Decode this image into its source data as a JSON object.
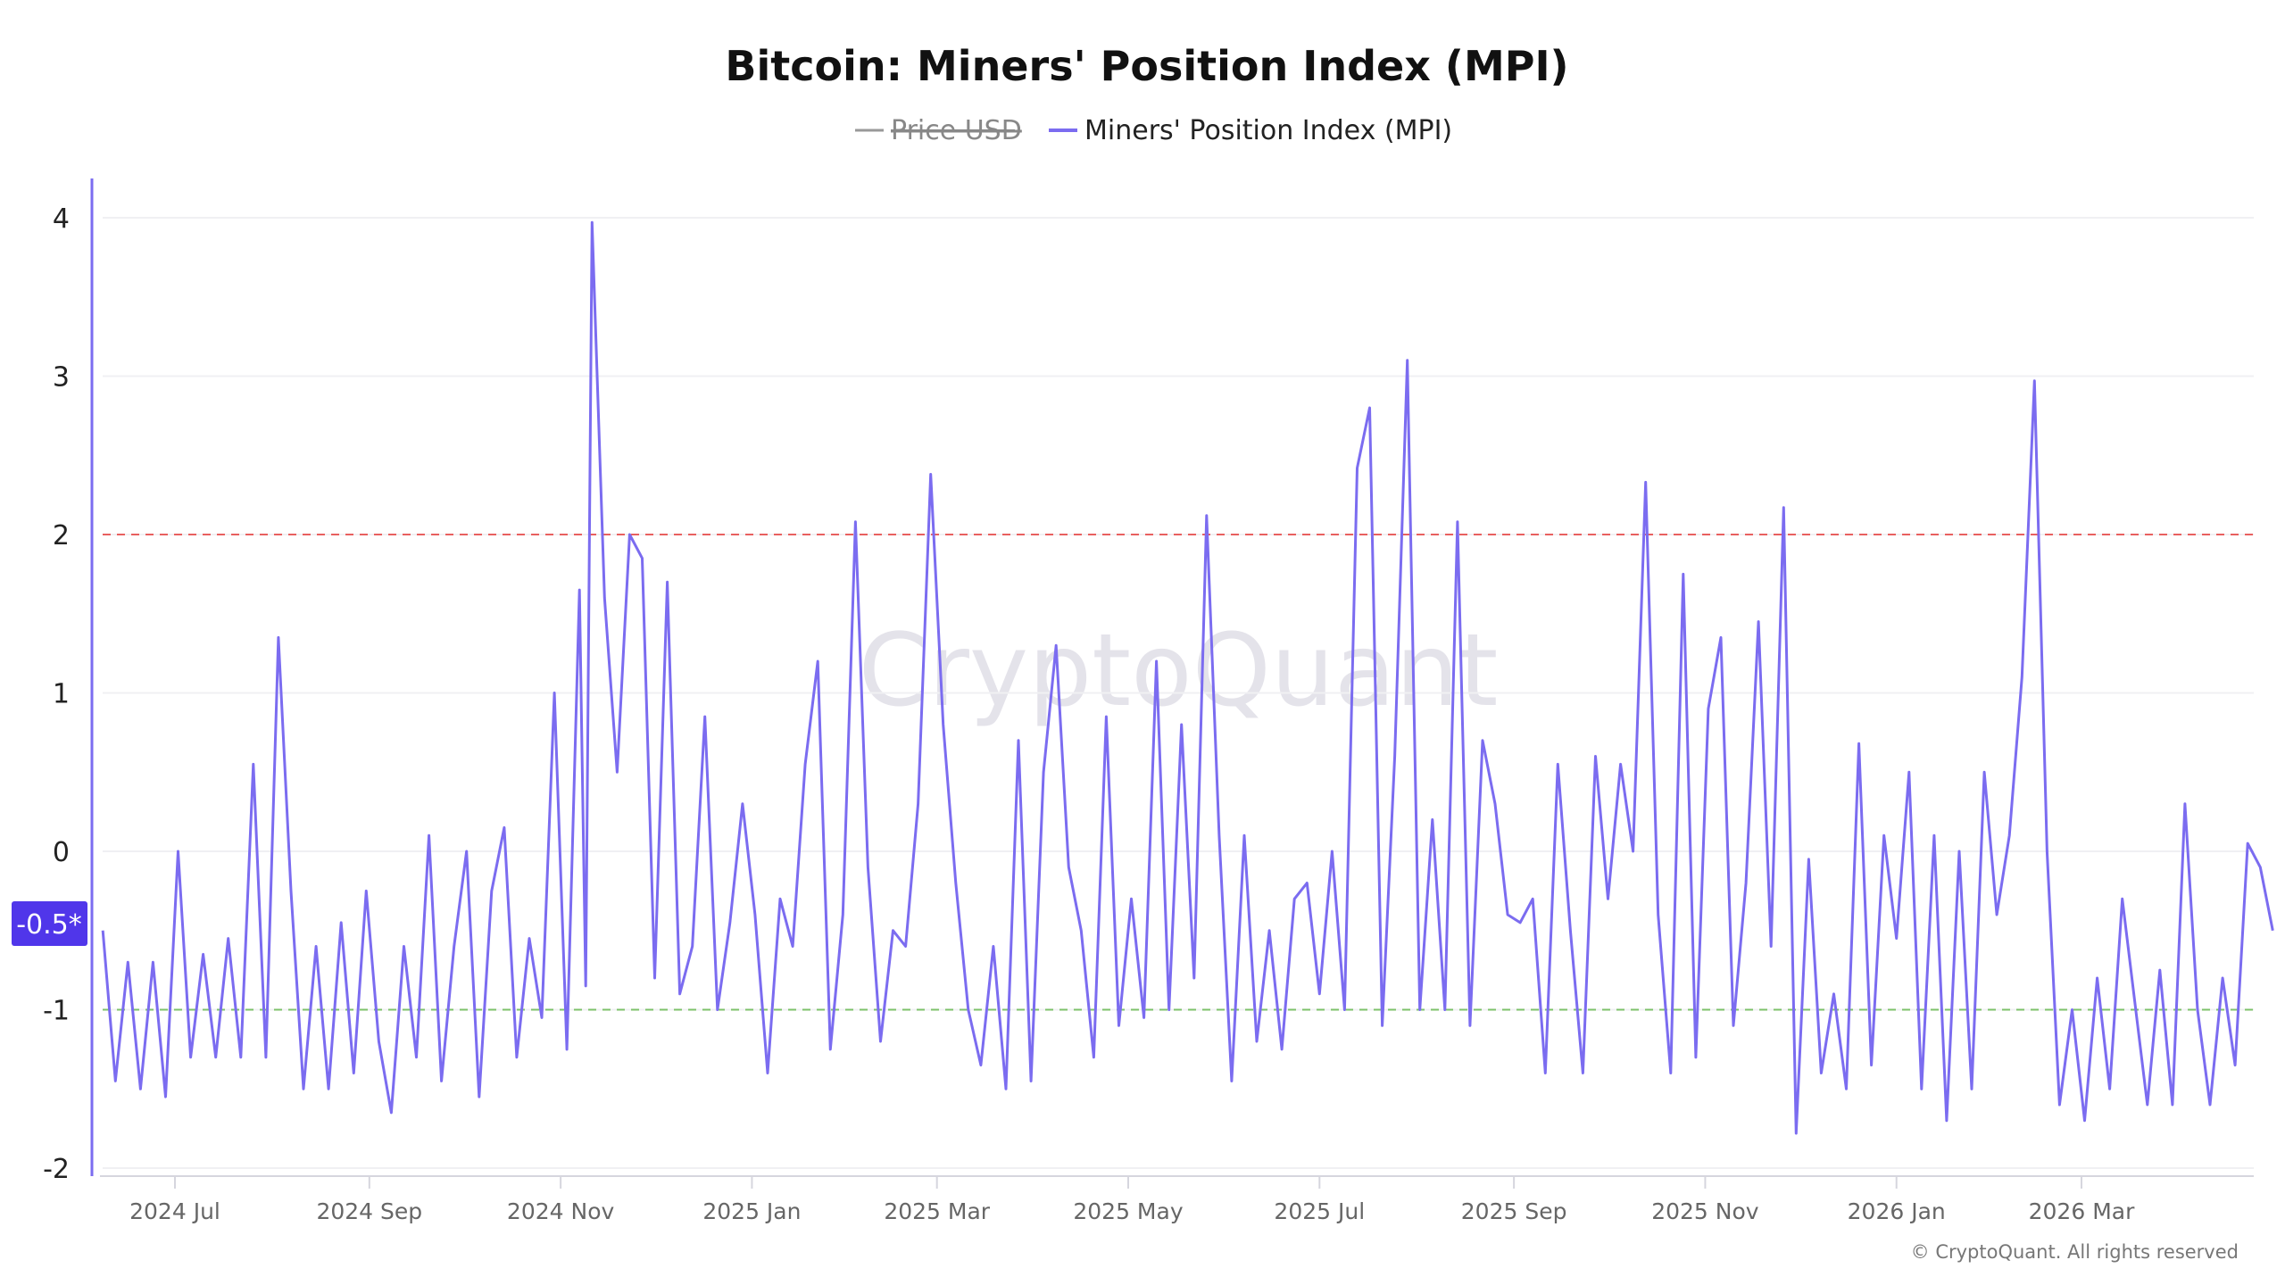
{
  "chart_data": {
    "type": "line",
    "title": "Bitcoin: Miners' Position Index (MPI)",
    "legend": [
      {
        "name": "Price USD",
        "color": "#999999",
        "hidden": true
      },
      {
        "name": "Miners' Position Index (MPI)",
        "color": "#7b6cf0",
        "hidden": false
      }
    ],
    "legend_placement": "top-center",
    "ylim": [
      -2,
      4.2
    ],
    "yticks": [
      "4",
      "3",
      "2",
      "1",
      "0",
      "-1",
      "-2"
    ],
    "ytick_values": [
      4,
      3,
      2,
      1,
      0,
      -1,
      -2
    ],
    "xticks": [
      "2024 Jul",
      "2024 Sep",
      "2024 Nov",
      "2025 Jan",
      "2025 Mar",
      "2025 May",
      "2025 Jul",
      "2025 Sep",
      "2025 Nov",
      "2026 Jan",
      "2026 Mar"
    ],
    "xlim": [
      "2024-06-06",
      "2026-05-02"
    ],
    "grid": true,
    "thresholds": [
      {
        "value": 2,
        "color": "#e8605f",
        "style": "dashed"
      },
      {
        "value": -1,
        "color": "#7cc26a",
        "style": "dashed"
      }
    ],
    "current_value_label": "-0.5*",
    "badge_color": "#5036ea",
    "watermark": "CryptoQuant",
    "copyright": "© CryptoQuant. All rights reserved",
    "series": [
      {
        "name": "Miners' Position Index (MPI)",
        "color": "#7b6cf0",
        "points": [
          [
            "2024-06-08",
            -0.5
          ],
          [
            "2024-06-12",
            -1.45
          ],
          [
            "2024-06-16",
            -0.7
          ],
          [
            "2024-06-20",
            -1.5
          ],
          [
            "2024-06-24",
            -0.7
          ],
          [
            "2024-06-28",
            -1.55
          ],
          [
            "2024-07-02",
            0.0
          ],
          [
            "2024-07-06",
            -1.3
          ],
          [
            "2024-07-10",
            -0.65
          ],
          [
            "2024-07-14",
            -1.3
          ],
          [
            "2024-07-18",
            -0.55
          ],
          [
            "2024-07-22",
            -1.3
          ],
          [
            "2024-07-26",
            0.55
          ],
          [
            "2024-07-30",
            -1.3
          ],
          [
            "2024-08-03",
            1.35
          ],
          [
            "2024-08-07",
            -0.25
          ],
          [
            "2024-08-11",
            -1.5
          ],
          [
            "2024-08-15",
            -0.6
          ],
          [
            "2024-08-19",
            -1.5
          ],
          [
            "2024-08-23",
            -0.45
          ],
          [
            "2024-08-27",
            -1.4
          ],
          [
            "2024-08-31",
            -0.25
          ],
          [
            "2024-09-04",
            -1.2
          ],
          [
            "2024-09-08",
            -1.65
          ],
          [
            "2024-09-12",
            -0.6
          ],
          [
            "2024-09-16",
            -1.3
          ],
          [
            "2024-09-20",
            0.1
          ],
          [
            "2024-09-24",
            -1.45
          ],
          [
            "2024-09-28",
            -0.6
          ],
          [
            "2024-10-02",
            0.0
          ],
          [
            "2024-10-06",
            -1.55
          ],
          [
            "2024-10-10",
            -0.25
          ],
          [
            "2024-10-14",
            0.15
          ],
          [
            "2024-10-18",
            -1.3
          ],
          [
            "2024-10-22",
            -0.55
          ],
          [
            "2024-10-26",
            -1.05
          ],
          [
            "2024-10-30",
            1.0
          ],
          [
            "2024-11-03",
            -1.25
          ],
          [
            "2024-11-07",
            1.65
          ],
          [
            "2024-11-09",
            -0.85
          ],
          [
            "2024-11-11",
            3.97
          ],
          [
            "2024-11-15",
            1.6
          ],
          [
            "2024-11-19",
            0.5
          ],
          [
            "2024-11-23",
            2.0
          ],
          [
            "2024-11-27",
            1.85
          ],
          [
            "2024-12-01",
            -0.8
          ],
          [
            "2024-12-05",
            1.7
          ],
          [
            "2024-12-09",
            -0.9
          ],
          [
            "2024-12-13",
            -0.6
          ],
          [
            "2024-12-17",
            0.85
          ],
          [
            "2024-12-21",
            -1.0
          ],
          [
            "2024-12-25",
            -0.45
          ],
          [
            "2024-12-29",
            0.3
          ],
          [
            "2025-01-02",
            -0.4
          ],
          [
            "2025-01-06",
            -1.4
          ],
          [
            "2025-01-10",
            -0.3
          ],
          [
            "2025-01-14",
            -0.6
          ],
          [
            "2025-01-18",
            0.55
          ],
          [
            "2025-01-22",
            1.2
          ],
          [
            "2025-01-26",
            -1.25
          ],
          [
            "2025-01-30",
            -0.4
          ],
          [
            "2025-02-03",
            2.08
          ],
          [
            "2025-02-07",
            -0.1
          ],
          [
            "2025-02-11",
            -1.2
          ],
          [
            "2025-02-15",
            -0.5
          ],
          [
            "2025-02-19",
            -0.6
          ],
          [
            "2025-02-23",
            0.3
          ],
          [
            "2025-02-27",
            2.38
          ],
          [
            "2025-03-03",
            0.8
          ],
          [
            "2025-03-07",
            -0.2
          ],
          [
            "2025-03-11",
            -1.0
          ],
          [
            "2025-03-15",
            -1.35
          ],
          [
            "2025-03-19",
            -0.6
          ],
          [
            "2025-03-23",
            -1.5
          ],
          [
            "2025-03-27",
            0.7
          ],
          [
            "2025-03-31",
            -1.45
          ],
          [
            "2025-04-04",
            0.5
          ],
          [
            "2025-04-08",
            1.3
          ],
          [
            "2025-04-12",
            -0.1
          ],
          [
            "2025-04-16",
            -0.5
          ],
          [
            "2025-04-20",
            -1.3
          ],
          [
            "2025-04-24",
            0.85
          ],
          [
            "2025-04-28",
            -1.1
          ],
          [
            "2025-05-02",
            -0.3
          ],
          [
            "2025-05-06",
            -1.05
          ],
          [
            "2025-05-10",
            1.2
          ],
          [
            "2025-05-14",
            -1.0
          ],
          [
            "2025-05-18",
            0.8
          ],
          [
            "2025-05-22",
            -0.8
          ],
          [
            "2025-05-26",
            2.12
          ],
          [
            "2025-05-30",
            0.1
          ],
          [
            "2025-06-03",
            -1.45
          ],
          [
            "2025-06-07",
            0.1
          ],
          [
            "2025-06-11",
            -1.2
          ],
          [
            "2025-06-15",
            -0.5
          ],
          [
            "2025-06-19",
            -1.25
          ],
          [
            "2025-06-23",
            -0.3
          ],
          [
            "2025-06-27",
            -0.2
          ],
          [
            "2025-07-01",
            -0.9
          ],
          [
            "2025-07-05",
            0.0
          ],
          [
            "2025-07-09",
            -1.0
          ],
          [
            "2025-07-13",
            2.42
          ],
          [
            "2025-07-17",
            2.8
          ],
          [
            "2025-07-21",
            -1.1
          ],
          [
            "2025-07-25",
            0.6
          ],
          [
            "2025-07-29",
            3.1
          ],
          [
            "2025-08-02",
            -1.0
          ],
          [
            "2025-08-06",
            0.2
          ],
          [
            "2025-08-10",
            -1.0
          ],
          [
            "2025-08-14",
            2.08
          ],
          [
            "2025-08-18",
            -1.1
          ],
          [
            "2025-08-22",
            0.7
          ],
          [
            "2025-08-26",
            0.3
          ],
          [
            "2025-08-30",
            -0.4
          ],
          [
            "2025-09-03",
            -0.45
          ],
          [
            "2025-09-07",
            -0.3
          ],
          [
            "2025-09-11",
            -1.4
          ],
          [
            "2025-09-15",
            0.55
          ],
          [
            "2025-09-19",
            -0.5
          ],
          [
            "2025-09-23",
            -1.4
          ],
          [
            "2025-09-27",
            0.6
          ],
          [
            "2025-10-01",
            -0.3
          ],
          [
            "2025-10-05",
            0.55
          ],
          [
            "2025-10-09",
            0.0
          ],
          [
            "2025-10-13",
            2.33
          ],
          [
            "2025-10-17",
            -0.4
          ],
          [
            "2025-10-21",
            -1.4
          ],
          [
            "2025-10-25",
            1.75
          ],
          [
            "2025-10-29",
            -1.3
          ],
          [
            "2025-11-02",
            0.9
          ],
          [
            "2025-11-06",
            1.35
          ],
          [
            "2025-11-10",
            -1.1
          ],
          [
            "2025-11-14",
            -0.2
          ],
          [
            "2025-11-18",
            1.45
          ],
          [
            "2025-11-22",
            -0.6
          ],
          [
            "2025-11-26",
            2.17
          ],
          [
            "2025-11-30",
            -1.78
          ],
          [
            "2025-12-04",
            -0.05
          ],
          [
            "2025-12-08",
            -1.4
          ],
          [
            "2025-12-12",
            -0.9
          ],
          [
            "2025-12-16",
            -1.5
          ],
          [
            "2025-12-20",
            0.68
          ],
          [
            "2025-12-24",
            -1.35
          ],
          [
            "2025-12-28",
            0.1
          ],
          [
            "2026-01-01",
            -0.55
          ],
          [
            "2026-01-05",
            0.5
          ],
          [
            "2026-01-09",
            -1.5
          ],
          [
            "2026-01-13",
            0.1
          ],
          [
            "2026-01-17",
            -1.7
          ],
          [
            "2026-01-21",
            0.0
          ],
          [
            "2026-01-25",
            -1.5
          ],
          [
            "2026-01-29",
            0.5
          ],
          [
            "2026-02-02",
            -0.4
          ],
          [
            "2026-02-06",
            0.1
          ],
          [
            "2026-02-10",
            1.1
          ],
          [
            "2026-02-14",
            2.97
          ],
          [
            "2026-02-18",
            0.0
          ],
          [
            "2026-02-22",
            -1.6
          ],
          [
            "2026-02-26",
            -1.0
          ],
          [
            "2026-03-02",
            -1.7
          ],
          [
            "2026-03-06",
            -0.8
          ],
          [
            "2026-03-10",
            -1.5
          ],
          [
            "2026-03-14",
            -0.3
          ],
          [
            "2026-03-18",
            -0.95
          ],
          [
            "2026-03-22",
            -1.6
          ],
          [
            "2026-03-26",
            -0.75
          ],
          [
            "2026-03-30",
            -1.6
          ],
          [
            "2026-04-03",
            0.3
          ],
          [
            "2026-04-07",
            -1.0
          ],
          [
            "2026-04-11",
            -1.6
          ],
          [
            "2026-04-15",
            -0.8
          ],
          [
            "2026-04-19",
            -1.35
          ],
          [
            "2026-04-23",
            0.05
          ],
          [
            "2026-04-27",
            -0.1
          ],
          [
            "2026-05-01",
            -0.5
          ]
        ]
      }
    ]
  }
}
